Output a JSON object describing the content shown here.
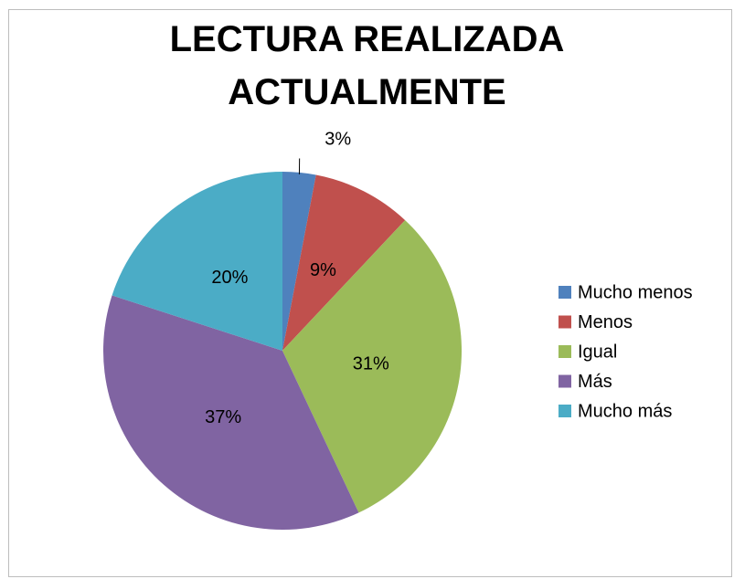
{
  "chart_data": {
    "type": "pie",
    "title": "LECTURA REALIZADA ACTUALMENTE",
    "categories": [
      "Mucho menos",
      "Menos",
      "Igual",
      "Más",
      "Mucho más"
    ],
    "values": [
      3,
      9,
      31,
      37,
      20
    ],
    "value_labels": [
      "3%",
      "9%",
      "31%",
      "37%",
      "20%"
    ],
    "colors": [
      "#4f81bd",
      "#c0504d",
      "#9bbb59",
      "#8064a2",
      "#4bacc6"
    ],
    "legend": "right"
  }
}
